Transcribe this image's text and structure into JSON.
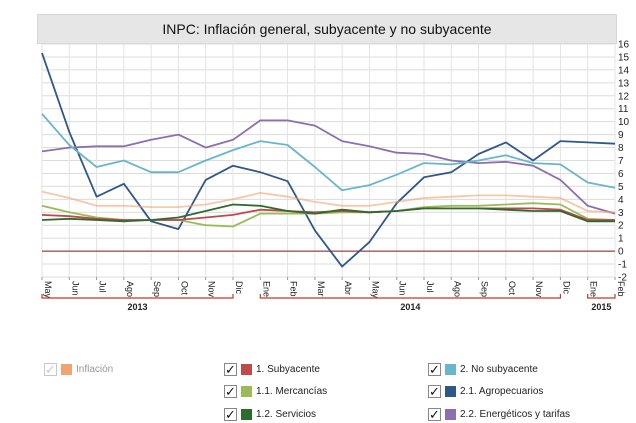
{
  "title": "INPC: Inflación general, subyacente y no subyacente",
  "legend": [
    {
      "label": "Inflación",
      "checked": false,
      "enabled": false,
      "color": "#f0a471"
    },
    {
      "label": "1. Subyacente",
      "checked": true,
      "enabled": true,
      "color": "#bf4a4a"
    },
    {
      "label": "2. No subyacente",
      "checked": true,
      "enabled": true,
      "color": "#68b6cb"
    },
    {
      "label": "1.1. Mercancías",
      "checked": true,
      "enabled": true,
      "color": "#9bbb59"
    },
    {
      "label": "2.1. Agropecuarios",
      "checked": true,
      "enabled": true,
      "color": "#2f5888"
    },
    {
      "label": "1.2. Servicios",
      "checked": true,
      "enabled": true,
      "color": "#2e6b2e"
    },
    {
      "label": "2.2. Energéticos y tarifas",
      "checked": true,
      "enabled": true,
      "color": "#8c6fae"
    }
  ],
  "chart_data": {
    "type": "line",
    "title": "INPC: Inflación general, subyacente y no subyacente",
    "x": [
      "May",
      "Jun",
      "Jul",
      "Ago",
      "Sep",
      "Oct",
      "Nov",
      "Dic",
      "Ene",
      "Feb",
      "Mar",
      "Abr",
      "May",
      "Jun",
      "Jul",
      "Ago",
      "Sep",
      "Oct",
      "Nov",
      "Dic",
      "Ene",
      "Feb"
    ],
    "year_groups": [
      {
        "label": "2013",
        "start": 0,
        "end": 7
      },
      {
        "label": "2014",
        "start": 8,
        "end": 19
      },
      {
        "label": "2015",
        "start": 20,
        "end": 21
      }
    ],
    "ylim": [
      -2,
      16
    ],
    "yticks": [
      -2,
      -1,
      0,
      1,
      2,
      3,
      4,
      5,
      6,
      7,
      8,
      9,
      10,
      11,
      12,
      13,
      14,
      15,
      16
    ],
    "y_axis_side": "right",
    "grid": true,
    "series": [
      {
        "name": "2.1. Agropecuarios",
        "color": "#2f5888",
        "width": 1.8,
        "values": [
          15.3,
          9.2,
          4.2,
          5.2,
          2.3,
          1.7,
          5.5,
          6.6,
          6.1,
          5.4,
          1.6,
          -1.2,
          0.7,
          3.7,
          5.7,
          6.1,
          7.5,
          8.4,
          7.0,
          8.5,
          8.4,
          8.3
        ]
      },
      {
        "name": "2.2. Energéticos y tarifas",
        "color": "#8c6fae",
        "width": 1.8,
        "values": [
          7.7,
          8.0,
          8.1,
          8.1,
          8.6,
          9.0,
          8.0,
          8.6,
          10.1,
          10.1,
          9.7,
          8.5,
          8.1,
          7.6,
          7.5,
          7.0,
          6.8,
          6.9,
          6.6,
          5.5,
          3.5,
          2.9
        ]
      },
      {
        "name": "2. No subyacente",
        "color": "#68b6cb",
        "width": 1.8,
        "values": [
          10.6,
          8.2,
          6.5,
          7.0,
          6.1,
          6.1,
          7.0,
          7.8,
          8.5,
          8.2,
          6.5,
          4.7,
          5.1,
          5.9,
          6.8,
          6.7,
          7.0,
          7.4,
          6.8,
          6.7,
          5.3,
          4.9
        ]
      },
      {
        "name": "Inflación",
        "color": "#f0a471",
        "width": 1.8,
        "opacity": 0.6,
        "values": [
          4.6,
          4.1,
          3.5,
          3.5,
          3.4,
          3.4,
          3.6,
          4.0,
          4.5,
          4.2,
          3.8,
          3.5,
          3.5,
          3.8,
          4.1,
          4.2,
          4.3,
          4.3,
          4.2,
          4.1,
          3.1,
          3.0
        ]
      },
      {
        "name": "1.1. Mercancías",
        "color": "#9bbb59",
        "width": 1.8,
        "values": [
          3.5,
          3.0,
          2.6,
          2.4,
          2.4,
          2.4,
          2.0,
          1.9,
          2.9,
          2.9,
          2.9,
          3.0,
          3.0,
          3.1,
          3.4,
          3.5,
          3.5,
          3.6,
          3.7,
          3.6,
          2.5,
          2.4
        ]
      },
      {
        "name": "1. Subyacente",
        "color": "#bf4a4a",
        "width": 1.8,
        "values": [
          2.8,
          2.7,
          2.5,
          2.4,
          2.4,
          2.4,
          2.6,
          2.8,
          3.2,
          3.1,
          3.0,
          3.1,
          3.0,
          3.1,
          3.3,
          3.3,
          3.3,
          3.3,
          3.3,
          3.2,
          2.4,
          2.4
        ]
      },
      {
        "name": "1.2. Servicios",
        "color": "#2e6b2e",
        "width": 1.8,
        "values": [
          2.4,
          2.5,
          2.4,
          2.3,
          2.4,
          2.6,
          3.1,
          3.6,
          3.5,
          3.1,
          2.9,
          3.2,
          3.0,
          3.1,
          3.3,
          3.3,
          3.3,
          3.2,
          3.1,
          3.1,
          2.3,
          2.3
        ]
      }
    ]
  }
}
